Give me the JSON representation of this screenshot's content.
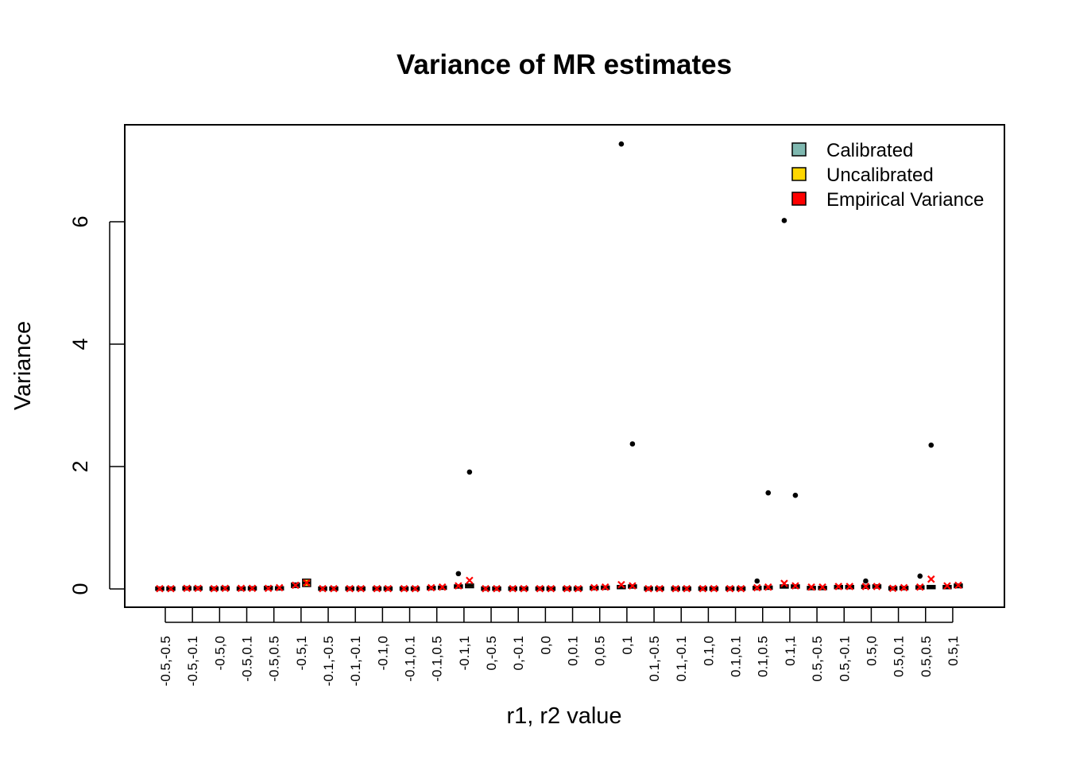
{
  "chart_data": {
    "type": "box",
    "title": "Variance of MR estimates",
    "xlabel": "r1, r2 value",
    "ylabel": "Variance",
    "ylim": [
      -0.3,
      7.55
    ],
    "yticks": [
      0,
      2,
      4,
      6
    ],
    "grid": false,
    "legend_position": "top-right",
    "legend": [
      {
        "label": "Calibrated",
        "color": "#7fb8b0"
      },
      {
        "label": "Uncalibrated",
        "color": "#ffd700"
      },
      {
        "label": "Empirical Variance",
        "color": "#ff0000"
      }
    ],
    "colors": {
      "calibrated_box": "#7fb8b0",
      "uncalibrated_box": "#ffd700",
      "empirical_marker": "#ff0000",
      "outlier": "#000000"
    },
    "categories": [
      "-0.5,-0.5",
      "-0.5,-0.1",
      "-0.5,0",
      "-0.5,0.1",
      "-0.5,0.5",
      "-0.5,1",
      "-0.1,-0.5",
      "-0.1,-0.1",
      "-0.1,0",
      "-0.1,0.1",
      "-0.1,0.5",
      "-0.1,1",
      "0,-0.5",
      "0,-0.1",
      "0,0",
      "0,0.1",
      "0,0.5",
      "0,1",
      "0.1,-0.5",
      "0.1,-0.1",
      "0.1,0",
      "0.1,0.1",
      "0.1,0.5",
      "0.1,1",
      "0.5,-0.5",
      "0.5,-0.1",
      "0.5,0",
      "0.5,0.1",
      "0.5,0.5",
      "0.5,1"
    ],
    "series": [
      {
        "name": "Calibrated",
        "medians": [
          0.005,
          0.01,
          0.005,
          0.005,
          0.015,
          0.06,
          0.005,
          0.005,
          0.005,
          0.005,
          0.015,
          0.04,
          0.005,
          0.005,
          0.005,
          0.005,
          0.015,
          0.03,
          0.005,
          0.005,
          0.005,
          0.005,
          0.015,
          0.04,
          0.015,
          0.03,
          0.035,
          0.01,
          0.025,
          0.03
        ],
        "outliers": [
          [],
          [],
          [],
          [],
          [],
          [],
          [],
          [],
          [],
          [],
          [],
          [
            0.25
          ],
          [],
          [],
          [],
          [],
          [],
          [
            7.27
          ],
          [],
          [],
          [],
          [],
          [
            0.13
          ],
          [
            6.02
          ],
          [],
          [],
          [
            0.13
          ],
          [],
          [
            0.21
          ],
          []
        ]
      },
      {
        "name": "Uncalibrated",
        "medians": [
          0.005,
          0.01,
          0.01,
          0.01,
          0.01,
          0.1,
          0.005,
          0.005,
          0.005,
          0.005,
          0.02,
          0.05,
          0.005,
          0.005,
          0.005,
          0.005,
          0.02,
          0.04,
          0.005,
          0.005,
          0.005,
          0.005,
          0.02,
          0.04,
          0.015,
          0.03,
          0.04,
          0.015,
          0.03,
          0.05
        ],
        "outliers": [
          [],
          [],
          [],
          [],
          [],
          [],
          [],
          [],
          [],
          [],
          [],
          [
            1.91
          ],
          [],
          [],
          [],
          [],
          [],
          [
            2.37
          ],
          [],
          [],
          [],
          [],
          [
            1.57
          ],
          [
            1.53
          ],
          [],
          [],
          [],
          [],
          [
            2.35
          ],
          []
        ]
      },
      {
        "name": "Empirical Variance",
        "calibrated": [
          0.005,
          0.01,
          0.005,
          0.01,
          0.01,
          0.06,
          0.005,
          0.005,
          0.005,
          0.005,
          0.02,
          0.05,
          0.005,
          0.005,
          0.005,
          0.005,
          0.02,
          0.07,
          0.005,
          0.005,
          0.005,
          0.005,
          0.02,
          0.09,
          0.03,
          0.04,
          0.04,
          0.01,
          0.03,
          0.05
        ],
        "uncalibrated": [
          0.005,
          0.01,
          0.01,
          0.01,
          0.02,
          0.1,
          0.005,
          0.005,
          0.005,
          0.005,
          0.03,
          0.14,
          0.005,
          0.005,
          0.005,
          0.005,
          0.03,
          0.05,
          0.005,
          0.005,
          0.005,
          0.005,
          0.03,
          0.05,
          0.03,
          0.04,
          0.04,
          0.02,
          0.16,
          0.06
        ]
      }
    ]
  }
}
